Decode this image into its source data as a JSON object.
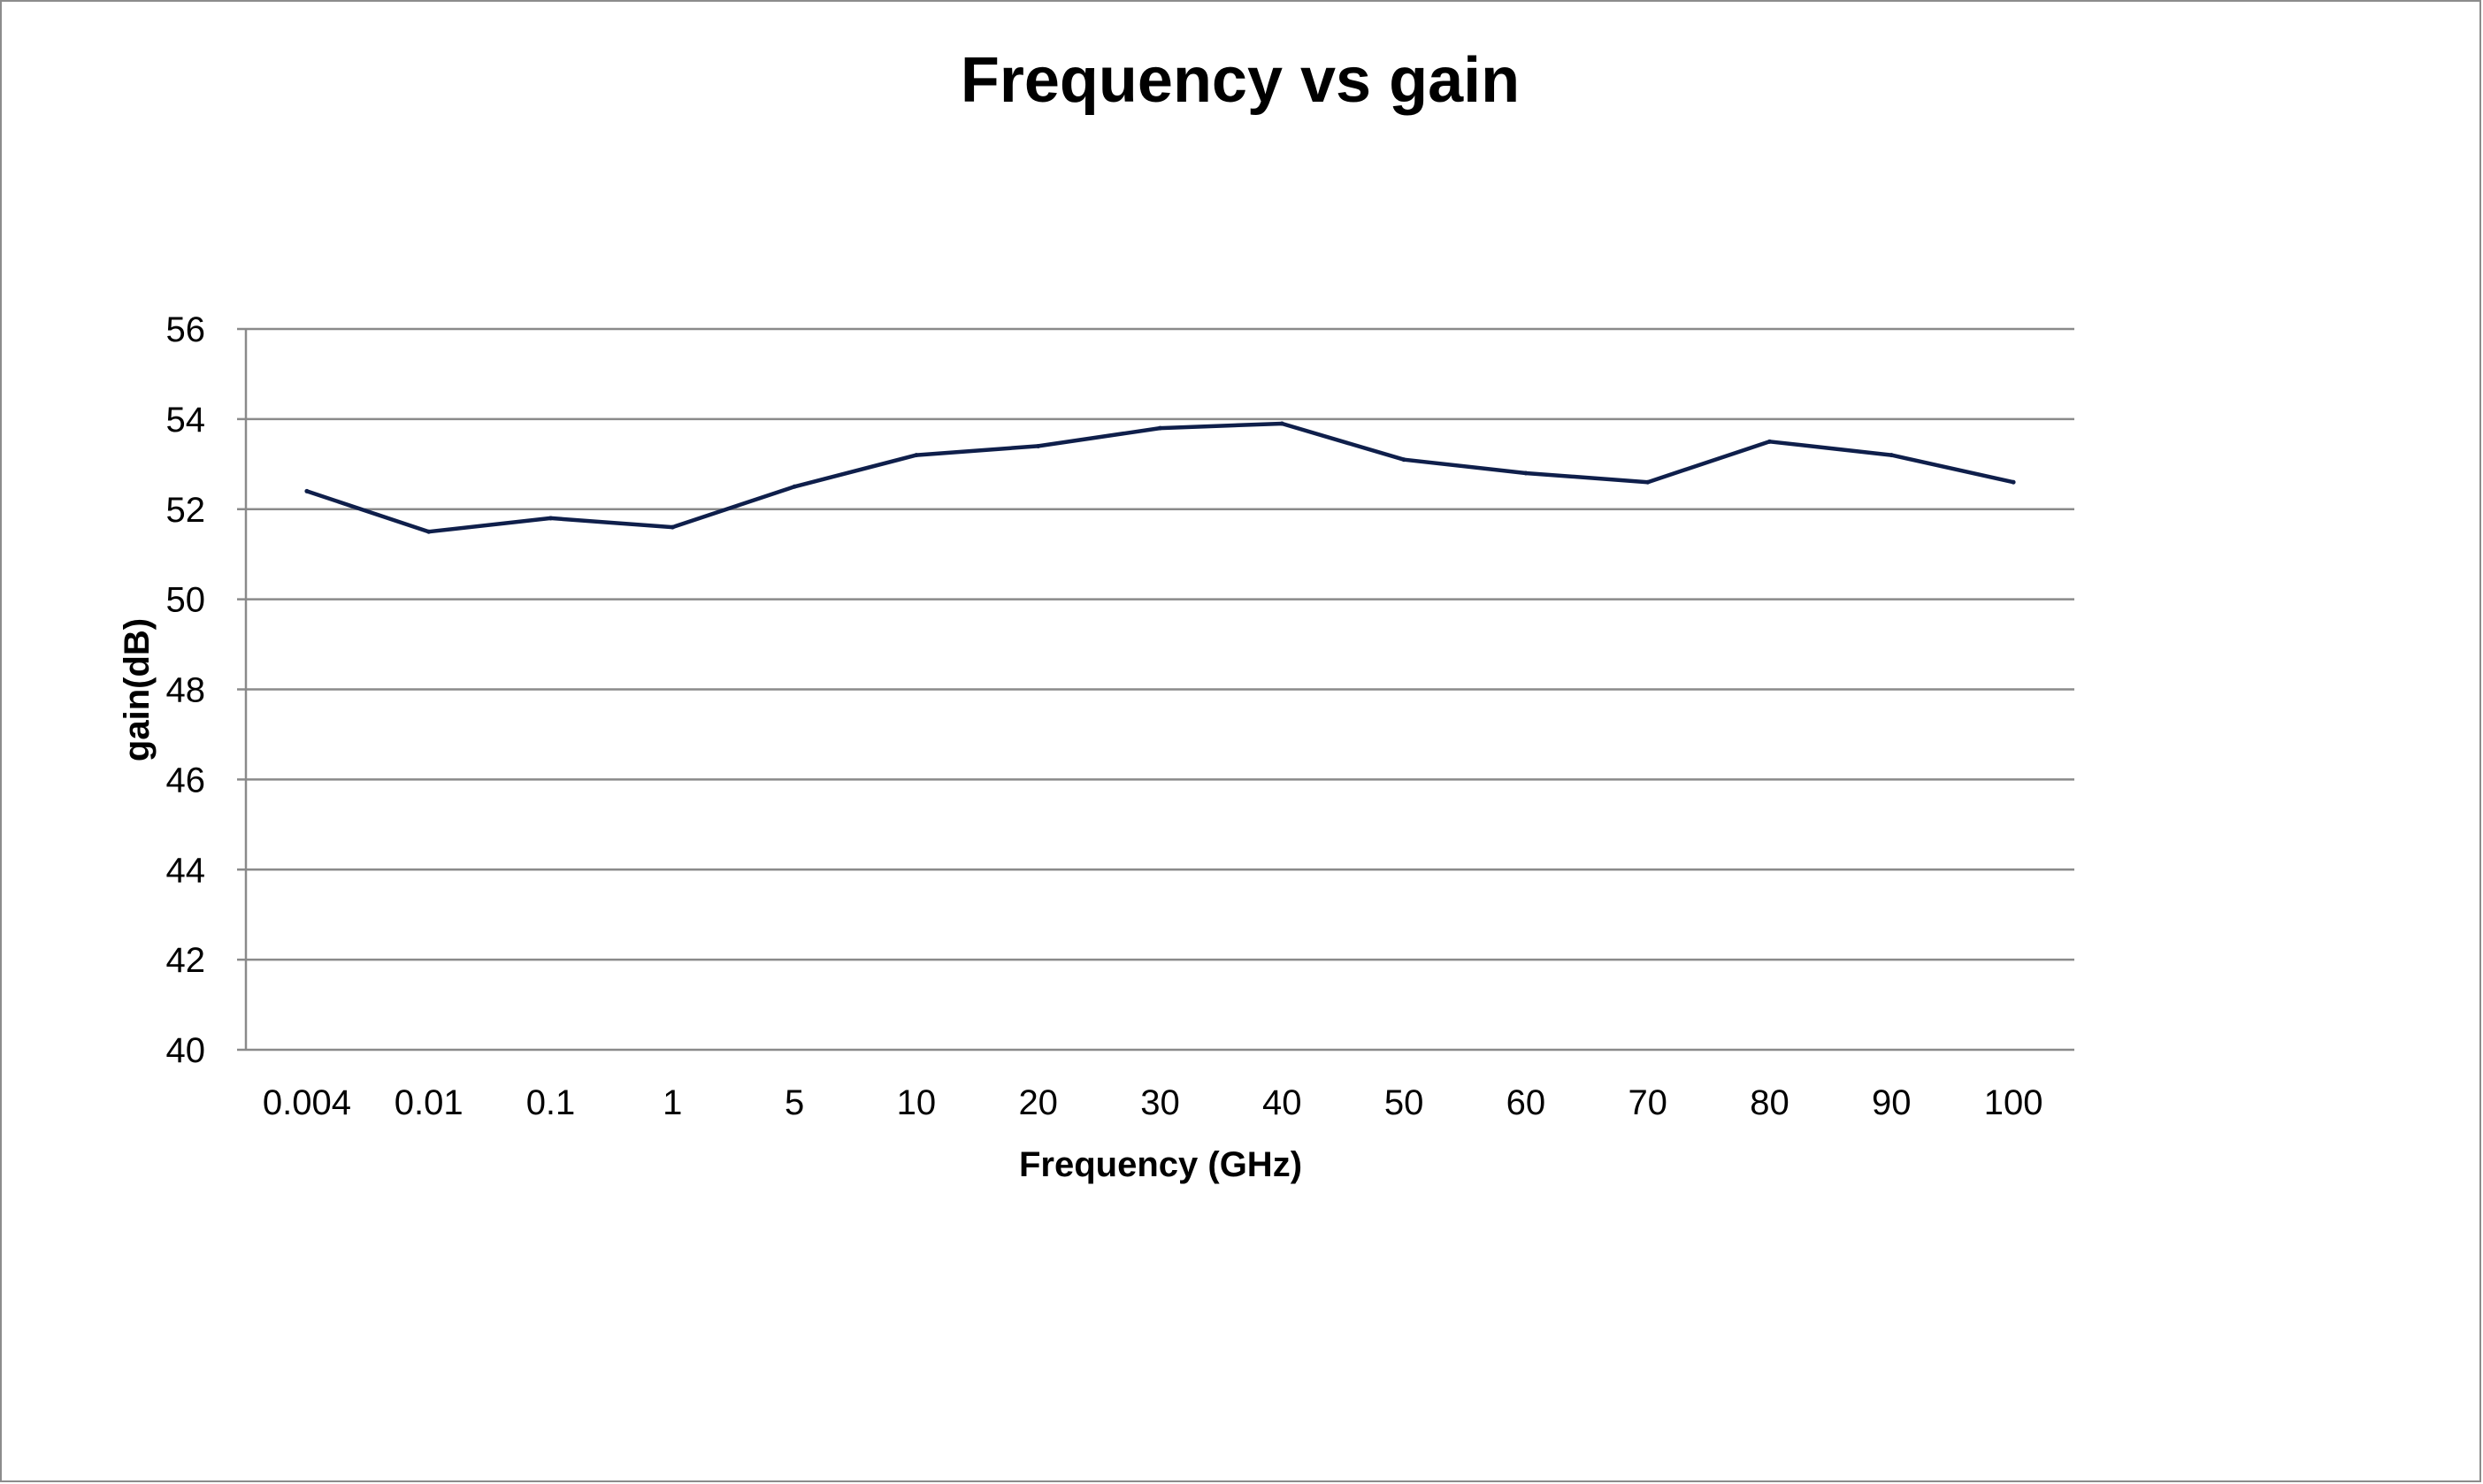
{
  "chart_data": {
    "type": "line",
    "title": "Frequency vs gain",
    "xlabel": "Frequency (GHz)",
    "ylabel": "gain(dB)",
    "categories": [
      "0.004",
      "0.01",
      "0.1",
      "1",
      "5",
      "10",
      "20",
      "30",
      "40",
      "50",
      "60",
      "70",
      "80",
      "90",
      "100"
    ],
    "series": [
      {
        "values": [
          52.4,
          51.5,
          51.8,
          51.6,
          52.5,
          53.2,
          53.4,
          53.8,
          53.9,
          53.1,
          52.8,
          52.6,
          53.5,
          53.2,
          52.6
        ]
      }
    ],
    "ylim": [
      40,
      56
    ],
    "yticks": [
      40,
      42,
      44,
      46,
      48,
      50,
      52,
      54,
      56
    ],
    "grid": true,
    "legend": "none",
    "colors": {
      "line": "#0f1f4b",
      "grid": "#8a8a8a",
      "frame": "#8c8c8c"
    }
  }
}
